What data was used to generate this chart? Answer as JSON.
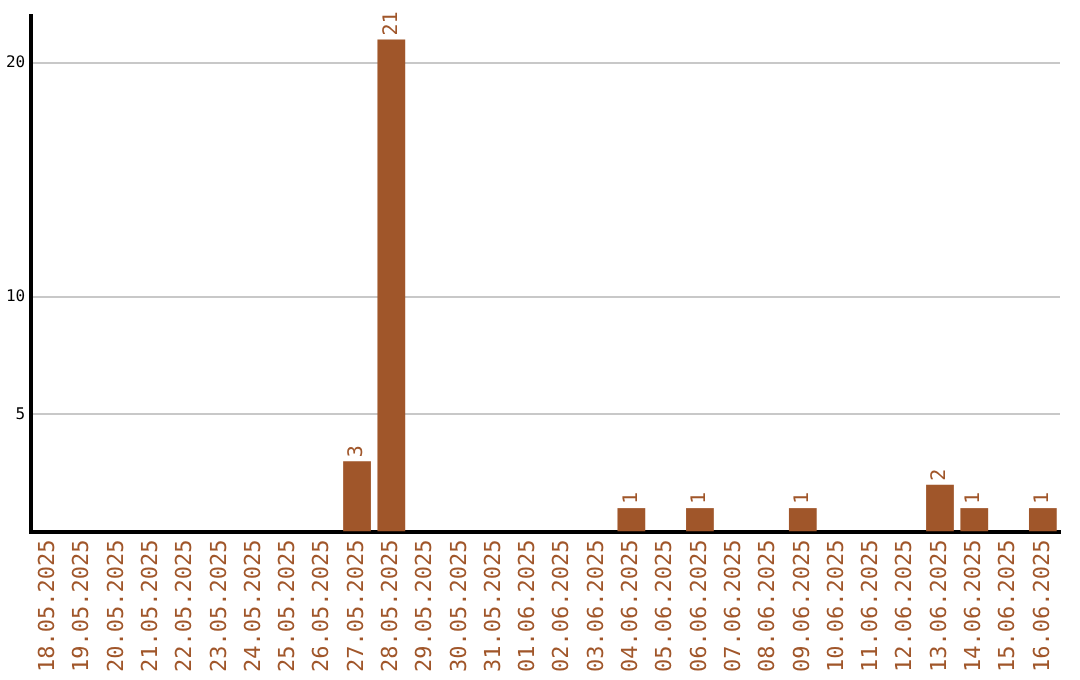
{
  "chart_data": {
    "type": "bar",
    "categories": [
      "18.05.2025",
      "19.05.2025",
      "20.05.2025",
      "21.05.2025",
      "22.05.2025",
      "23.05.2025",
      "24.05.2025",
      "25.05.2025",
      "26.05.2025",
      "27.05.2025",
      "28.05.2025",
      "29.05.2025",
      "30.05.2025",
      "31.05.2025",
      "01.06.2025",
      "02.06.2025",
      "03.06.2025",
      "04.06.2025",
      "05.06.2025",
      "06.06.2025",
      "07.06.2025",
      "08.06.2025",
      "09.06.2025",
      "10.06.2025",
      "11.06.2025",
      "12.06.2025",
      "13.06.2025",
      "14.06.2025",
      "15.06.2025",
      "16.06.2025"
    ],
    "values": [
      0,
      0,
      0,
      0,
      0,
      0,
      0,
      0,
      0,
      3,
      21,
      0,
      0,
      0,
      0,
      0,
      0,
      1,
      0,
      1,
      0,
      0,
      1,
      0,
      0,
      0,
      2,
      1,
      0,
      1
    ],
    "value_labels": [
      null,
      null,
      null,
      null,
      null,
      null,
      null,
      null,
      null,
      "3",
      "21",
      null,
      null,
      null,
      null,
      null,
      null,
      "1",
      null,
      "1",
      null,
      null,
      "1",
      null,
      null,
      null,
      "2",
      "1",
      null,
      "1"
    ],
    "color": "#a0562a",
    "ylim": [
      0,
      22
    ],
    "yticks": [
      5,
      10,
      20
    ],
    "grid": "y",
    "legend": false
  }
}
